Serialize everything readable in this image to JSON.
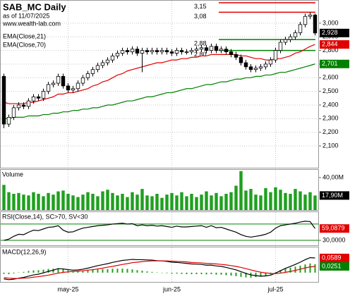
{
  "chart_data": [
    {
      "type": "candlestick",
      "title": "SAB_MC Daily",
      "subtitle": "as of 11/07/2025",
      "source": "www.wealth-lab.com",
      "grid": true,
      "categories": [
        null,
        null,
        null,
        null,
        null,
        null,
        null,
        null,
        null,
        null,
        null,
        null,
        null,
        "may-25",
        null,
        null,
        null,
        null,
        null,
        null,
        null,
        null,
        null,
        null,
        null,
        null,
        null,
        null,
        null,
        null,
        null,
        null,
        null,
        null,
        "jun-25",
        null,
        null,
        null,
        null,
        null,
        null,
        null,
        null,
        null,
        null,
        null,
        null,
        null,
        null,
        null,
        null,
        null,
        null,
        null,
        null,
        "jul-25",
        null,
        null,
        null,
        null,
        null,
        null,
        null,
        null
      ],
      "open": [
        2.61,
        2.26,
        2.31,
        2.38,
        2.4,
        2.39,
        2.43,
        2.46,
        2.45,
        2.5,
        2.55,
        2.56,
        2.61,
        2.54,
        2.51,
        2.52,
        2.56,
        2.6,
        2.63,
        2.66,
        2.69,
        2.71,
        2.73,
        2.76,
        2.78,
        2.8,
        2.79,
        2.81,
        2.78,
        2.8,
        2.79,
        2.8,
        2.79,
        2.8,
        2.79,
        2.78,
        2.8,
        2.79,
        2.79,
        2.8,
        2.81,
        2.82,
        2.8,
        2.83,
        2.8,
        2.81,
        2.79,
        2.77,
        2.75,
        2.71,
        2.68,
        2.66,
        2.67,
        2.68,
        2.7,
        2.73,
        2.8,
        2.86,
        2.88,
        2.9,
        2.93,
        2.99,
        3.05,
        3.06
      ],
      "high": [
        2.63,
        2.33,
        2.4,
        2.42,
        2.42,
        2.45,
        2.48,
        2.48,
        2.52,
        2.57,
        2.58,
        2.63,
        2.63,
        2.56,
        2.54,
        2.58,
        2.62,
        2.65,
        2.68,
        2.71,
        2.73,
        2.75,
        2.78,
        2.8,
        2.82,
        2.82,
        2.83,
        2.83,
        2.82,
        2.82,
        2.82,
        2.82,
        2.82,
        2.82,
        2.81,
        2.82,
        2.82,
        2.81,
        2.82,
        2.83,
        2.84,
        2.84,
        2.85,
        2.85,
        2.83,
        2.83,
        2.81,
        2.79,
        2.77,
        2.73,
        2.7,
        2.69,
        2.7,
        2.72,
        2.75,
        2.82,
        2.88,
        2.9,
        2.92,
        2.95,
        3.01,
        3.07,
        3.08,
        3.07
      ],
      "low": [
        2.23,
        2.24,
        2.29,
        2.36,
        2.37,
        2.37,
        2.41,
        2.43,
        2.43,
        2.48,
        2.53,
        2.54,
        2.52,
        2.49,
        2.49,
        2.5,
        2.54,
        2.58,
        2.61,
        2.64,
        2.67,
        2.69,
        2.71,
        2.74,
        2.76,
        2.77,
        2.77,
        2.76,
        2.64,
        2.77,
        2.77,
        2.77,
        2.77,
        2.77,
        2.76,
        2.76,
        2.77,
        2.77,
        2.77,
        2.78,
        2.79,
        2.78,
        2.78,
        2.78,
        2.78,
        2.77,
        2.75,
        2.73,
        2.69,
        2.66,
        2.64,
        2.64,
        2.65,
        2.66,
        2.68,
        2.71,
        2.78,
        2.84,
        2.86,
        2.88,
        2.91,
        2.97,
        3.03,
        2.91
      ],
      "close": [
        2.26,
        2.31,
        2.38,
        2.4,
        2.39,
        2.43,
        2.46,
        2.45,
        2.5,
        2.55,
        2.56,
        2.61,
        2.54,
        2.51,
        2.52,
        2.56,
        2.6,
        2.63,
        2.66,
        2.69,
        2.71,
        2.73,
        2.76,
        2.78,
        2.8,
        2.79,
        2.81,
        2.78,
        2.8,
        2.79,
        2.8,
        2.79,
        2.8,
        2.79,
        2.78,
        2.8,
        2.79,
        2.79,
        2.8,
        2.81,
        2.82,
        2.8,
        2.83,
        2.8,
        2.81,
        2.79,
        2.77,
        2.75,
        2.71,
        2.68,
        2.66,
        2.67,
        2.68,
        2.7,
        2.73,
        2.8,
        2.86,
        2.88,
        2.9,
        2.93,
        2.99,
        3.05,
        3.06,
        2.928
      ],
      "series": [
        {
          "name": "EMA(Close,21)",
          "color": "#e00000",
          "values": [
            2.42,
            2.41,
            2.41,
            2.41,
            2.41,
            2.42,
            2.42,
            2.43,
            2.44,
            2.45,
            2.46,
            2.48,
            2.48,
            2.49,
            2.49,
            2.5,
            2.51,
            2.52,
            2.54,
            2.55,
            2.57,
            2.58,
            2.6,
            2.62,
            2.63,
            2.65,
            2.66,
            2.67,
            2.68,
            2.69,
            2.7,
            2.71,
            2.71,
            2.72,
            2.73,
            2.73,
            2.74,
            2.74,
            2.75,
            2.75,
            2.76,
            2.76,
            2.77,
            2.77,
            2.77,
            2.77,
            2.77,
            2.77,
            2.76,
            2.76,
            2.75,
            2.74,
            2.74,
            2.73,
            2.73,
            2.74,
            2.74,
            2.75,
            2.76,
            2.78,
            2.79,
            2.81,
            2.83,
            2.844
          ]
        },
        {
          "name": "EMA(Close,70)",
          "color": "#008000",
          "values": [
            2.3,
            2.3,
            2.31,
            2.31,
            2.31,
            2.32,
            2.32,
            2.32,
            2.33,
            2.33,
            2.34,
            2.34,
            2.35,
            2.35,
            2.36,
            2.36,
            2.37,
            2.37,
            2.38,
            2.38,
            2.39,
            2.4,
            2.4,
            2.41,
            2.42,
            2.43,
            2.43,
            2.44,
            2.45,
            2.46,
            2.46,
            2.47,
            2.48,
            2.49,
            2.49,
            2.5,
            2.51,
            2.52,
            2.52,
            2.53,
            2.54,
            2.55,
            2.55,
            2.56,
            2.57,
            2.57,
            2.58,
            2.59,
            2.59,
            2.6,
            2.6,
            2.61,
            2.61,
            2.62,
            2.62,
            2.63,
            2.64,
            2.64,
            2.65,
            2.66,
            2.67,
            2.68,
            2.69,
            2.701
          ]
        }
      ],
      "ylim": [
        1.94,
        3.17
      ],
      "yticks": [
        {
          "value": 2.1,
          "label": "2,100"
        },
        {
          "value": 2.2,
          "label": "2,200"
        },
        {
          "value": 2.3,
          "label": "2,300"
        },
        {
          "value": 2.4,
          "label": "2,400"
        },
        {
          "value": 2.5,
          "label": "2,500"
        },
        {
          "value": 2.6,
          "label": "2,600"
        },
        {
          "value": 2.7,
          "label": "2,700"
        },
        {
          "value": 2.8,
          "label": "2,800"
        },
        {
          "value": 2.9,
          "label": "2,900"
        },
        {
          "value": 3.0,
          "label": "3,000"
        }
      ],
      "levels": [
        {
          "value": 3.15,
          "label": "3,15",
          "color": "#e00000"
        },
        {
          "value": 3.08,
          "label": "3,08",
          "color": "#e00000"
        },
        {
          "value": 2.88,
          "label": "2,88",
          "color": "#008000"
        },
        {
          "value": 2.8,
          "label": "2,80",
          "color": "#008000"
        }
      ],
      "markers": [
        {
          "value": 2.928,
          "label": "2,928",
          "color": "#000000"
        },
        {
          "value": 2.844,
          "label": "2,844",
          "color": "#e00000"
        },
        {
          "value": 2.701,
          "label": "2,701",
          "color": "#008000"
        }
      ]
    },
    {
      "type": "bar",
      "title": "Volume",
      "color": "#1fa01f",
      "values": [
        31,
        22,
        20,
        21,
        19,
        18,
        22,
        20,
        17,
        21,
        19,
        23,
        24,
        20,
        18,
        16,
        19,
        22,
        20,
        17,
        23,
        25,
        21,
        18,
        20,
        16,
        22,
        19,
        26,
        18,
        17,
        20,
        15,
        19,
        21,
        18,
        22,
        17,
        20,
        16,
        19,
        23,
        18,
        21,
        17,
        20,
        22,
        30,
        48,
        24,
        26,
        19,
        18,
        27,
        22,
        28,
        25,
        21,
        20,
        26,
        23,
        19,
        22,
        17.9
      ],
      "ylim": [
        0,
        50.4
      ],
      "yticks": [
        {
          "value": 40,
          "label": "40,00M"
        }
      ],
      "markers": [
        {
          "value": 17.9,
          "label": "17,90M",
          "color": "#000000"
        }
      ]
    },
    {
      "type": "line",
      "title": "RSI(Close,14), SC>70, SV<30",
      "color": "#000000",
      "values": [
        30,
        33,
        40,
        45,
        44,
        50,
        55,
        54,
        58,
        62,
        63,
        66,
        55,
        50,
        51,
        56,
        60,
        62,
        64,
        66,
        67,
        68,
        70,
        71,
        72,
        70,
        71,
        66,
        68,
        66,
        67,
        65,
        66,
        64,
        62,
        65,
        63,
        63,
        64,
        65,
        66,
        62,
        66,
        61,
        62,
        58,
        54,
        50,
        44,
        40,
        38,
        40,
        42,
        45,
        50,
        60,
        66,
        68,
        70,
        72,
        75,
        77,
        76,
        59.0879
      ],
      "ylim": [
        18,
        101
      ],
      "yticks": [
        {
          "value": 30,
          "label": "30,0000"
        }
      ],
      "levels": [
        {
          "value": 70,
          "color": "#008000"
        },
        {
          "value": 30,
          "color": "#008000"
        }
      ],
      "markers": [
        {
          "value": 59.0879,
          "label": "59,0879",
          "color": "#e00000"
        }
      ]
    },
    {
      "type": "macd",
      "title": "MACD(12,26,9)",
      "series": [
        {
          "color": "#000000",
          "values": [
            -0.025,
            -0.028,
            -0.026,
            -0.022,
            -0.019,
            -0.014,
            -0.009,
            -0.006,
            -0.001,
            0.005,
            0.01,
            0.016,
            0.015,
            0.012,
            0.01,
            0.011,
            0.014,
            0.018,
            0.023,
            0.028,
            0.032,
            0.036,
            0.041,
            0.045,
            0.049,
            0.051,
            0.053,
            0.052,
            0.052,
            0.051,
            0.05,
            0.048,
            0.047,
            0.045,
            0.042,
            0.041,
            0.039,
            0.037,
            0.035,
            0.034,
            0.033,
            0.03,
            0.03,
            0.027,
            0.025,
            0.021,
            0.016,
            0.011,
            0.004,
            -0.003,
            -0.009,
            -0.012,
            -0.014,
            -0.013,
            -0.01,
            -0.002,
            0.008,
            0.017,
            0.025,
            0.033,
            0.042,
            0.052,
            0.06,
            0.0589
          ]
        },
        {
          "color": "#e00000",
          "values": [
            -0.02,
            -0.022,
            -0.023,
            -0.023,
            -0.022,
            -0.021,
            -0.018,
            -0.016,
            -0.013,
            -0.01,
            -0.006,
            -0.002,
            0.001,
            0.003,
            0.005,
            0.006,
            0.008,
            0.01,
            0.012,
            0.015,
            0.018,
            0.022,
            0.025,
            0.029,
            0.033,
            0.036,
            0.04,
            0.042,
            0.044,
            0.046,
            0.047,
            0.047,
            0.047,
            0.047,
            0.046,
            0.045,
            0.044,
            0.043,
            0.041,
            0.04,
            0.039,
            0.037,
            0.036,
            0.035,
            0.033,
            0.031,
            0.028,
            0.025,
            0.021,
            0.016,
            0.011,
            0.006,
            0.002,
            -0.001,
            -0.003,
            -0.004,
            -0.002,
            0.001,
            0.005,
            0.009,
            0.014,
            0.019,
            0.023,
            0.0251
          ]
        }
      ],
      "histogram": {
        "color": "#1fa01f",
        "values": [
          -0.005,
          -0.006,
          -0.003,
          0.001,
          0.003,
          0.007,
          0.009,
          0.01,
          0.012,
          0.015,
          0.016,
          0.018,
          0.014,
          0.009,
          0.005,
          0.005,
          0.006,
          0.008,
          0.011,
          0.013,
          0.014,
          0.014,
          0.016,
          0.016,
          0.016,
          0.015,
          0.013,
          0.01,
          0.008,
          0.005,
          0.003,
          0.001,
          0.0,
          -0.002,
          -0.004,
          -0.004,
          -0.005,
          -0.006,
          -0.006,
          -0.006,
          -0.006,
          -0.007,
          -0.006,
          -0.008,
          -0.008,
          -0.01,
          -0.012,
          -0.014,
          -0.017,
          -0.019,
          -0.02,
          -0.018,
          -0.016,
          -0.012,
          -0.007,
          0.002,
          0.01,
          0.016,
          0.02,
          0.024,
          0.028,
          0.033,
          0.037,
          0.0338
        ]
      },
      "ylim": [
        -0.037,
        0.104
      ],
      "yticks": [],
      "markers": [
        {
          "value": 0.0589,
          "label": "0,0589",
          "color": "#e00000"
        },
        {
          "value": 0.0251,
          "label": "0,0251",
          "color": "#008000"
        }
      ]
    }
  ]
}
